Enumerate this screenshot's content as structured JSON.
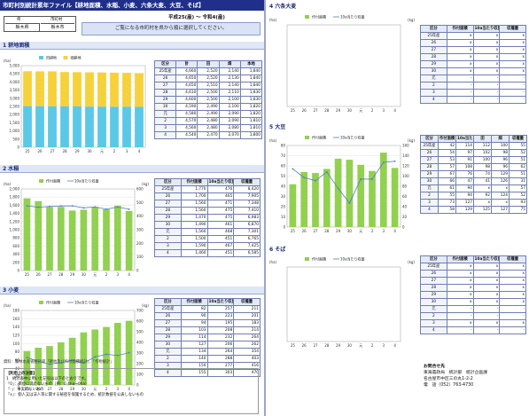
{
  "title": "市町村別統計累年ファイル【耕地面積、水稲、小麦、六条大麦、大豆、そば】",
  "period": "平成25(産) ～ 令和4(産)",
  "area": {
    "pref_head": "県",
    "city_head": "市町村",
    "pref": "栃木県",
    "city": "栃木市"
  },
  "notice": "ご覧になる市町村を県から順に選択してください。",
  "sections": {
    "s1": "1  耕地面積",
    "s2": "2  水稲",
    "s3": "3  小麦",
    "s4": "4  六条大麦",
    "s5": "5  大豆",
    "s6": "6  そば"
  },
  "legend": {
    "rice_field": "田耕地",
    "upland": "畑耕地",
    "planted": "作付面積",
    "yield": "10a当たり収量"
  },
  "units": {
    "ha": "(ha)",
    "kg": "(kg)",
    "unit_head": "(単位:ha)"
  },
  "years_x": [
    "25",
    "26",
    "27",
    "28",
    "29",
    "30",
    "元",
    "2",
    "3",
    "4"
  ],
  "year_rows": [
    "25年産",
    "26",
    "27",
    "28",
    "29",
    "30",
    "元",
    "2",
    "3",
    "4"
  ],
  "table_heads": {
    "year": "区分",
    "total": "計",
    "paddy": "田",
    "upland": "畑",
    "main": "本地",
    "sub": "畦畔",
    "planted": "作付面積",
    "per10a": "10a当たり収量",
    "harvest": "収穫量",
    "paddy2": "田",
    "upland2": "畑"
  },
  "tables": {
    "land": [
      [
        "4,660",
        "2,520",
        "2,140",
        "1,840"
      ],
      [
        "4,650",
        "2,520",
        "2,130",
        "1,840"
      ],
      [
        "4,650",
        "2,510",
        "2,140",
        "1,840"
      ],
      [
        "4,610",
        "2,500",
        "2,110",
        "1,830"
      ],
      [
        "4,600",
        "2,500",
        "2,100",
        "1,830"
      ],
      [
        "4,590",
        "2,490",
        "2,100",
        "1,820"
      ],
      [
        "4,580",
        "2,490",
        "2,090",
        "1,820"
      ],
      [
        "4,570",
        "2,480",
        "2,090",
        "1,810"
      ],
      [
        "4,560",
        "2,480",
        "2,080",
        "1,810"
      ],
      [
        "4,540",
        "2,470",
        "2,070",
        "1,800"
      ]
    ],
    "rice": [
      [
        "1,770",
        "476",
        "8,420"
      ],
      [
        "1,700",
        "465",
        "7,905"
      ],
      [
        "1,560",
        "471",
        "7,348"
      ],
      [
        "1,560",
        "475",
        "7,410"
      ],
      [
        "1,470",
        "475",
        "6,983"
      ],
      [
        "1,490",
        "461",
        "6,870"
      ],
      [
        "1,560",
        "468",
        "7,301"
      ],
      [
        "1,500",
        "451",
        "6,765"
      ],
      [
        "1,590",
        "467",
        "7,425"
      ],
      [
        "1,460",
        "451",
        "6,585"
      ]
    ],
    "wheat": [
      [
        "82",
        "257",
        "211"
      ],
      [
        "90",
        "223",
        "201"
      ],
      [
        "94",
        "195",
        "183"
      ],
      [
        "103",
        "208",
        "214"
      ],
      [
        "114",
        "232",
        "264"
      ],
      [
        "127",
        "206",
        "262"
      ],
      [
        "134",
        "264",
        "354"
      ],
      [
        "140",
        "288",
        "403"
      ],
      [
        "150",
        "277",
        "416"
      ],
      [
        "155",
        "303",
        "470"
      ]
    ],
    "barley": [
      [
        "x",
        "x",
        "x"
      ],
      [
        "x",
        "x",
        "x"
      ],
      [
        "x",
        "x",
        "x"
      ],
      [
        "x",
        "x",
        "x"
      ],
      [
        "x",
        "x",
        "x"
      ],
      [
        "x",
        "x",
        "x"
      ],
      [
        "-",
        "-",
        "-"
      ],
      [
        "-",
        "-",
        "-"
      ],
      [
        "-",
        "-",
        "-"
      ],
      [
        "-",
        "-",
        "-"
      ]
    ],
    "soy": [
      [
        "42",
        "114",
        "112",
        "100",
        "55"
      ],
      [
        "54",
        "97",
        "102",
        "98",
        "52"
      ],
      [
        "53",
        "91",
        "100",
        "96",
        "51"
      ],
      [
        "57",
        "108",
        "98",
        "96",
        "62"
      ],
      [
        "67",
        "76",
        "74",
        "129",
        "51"
      ],
      [
        "66",
        "47",
        "41",
        "126",
        "31"
      ],
      [
        "61",
        "94",
        "x",
        "x",
        "57"
      ],
      [
        "55",
        "94",
        "92",
        "124",
        "52"
      ],
      [
        "73",
        "127",
        "x",
        "x",
        "93"
      ],
      [
        "58",
        "129",
        "125",
        "127",
        "75"
      ]
    ],
    "soba": [
      [
        "x",
        "x",
        "x"
      ],
      [
        "x",
        "x",
        "x"
      ],
      [
        "x",
        "x",
        "x"
      ],
      [
        "x",
        "x",
        "x"
      ],
      [
        "x",
        "x",
        "x"
      ],
      [
        "x",
        "x",
        "x"
      ],
      [
        "-",
        "-",
        "-"
      ],
      [
        "-",
        "-",
        "-"
      ],
      [
        "x",
        "x",
        "x"
      ],
      [
        "-",
        "-",
        "-"
      ]
    ]
  },
  "source": "資料：農林水産省統計部「耕地及び作付面積統計」、「作物統計」",
  "notes": {
    "title": "【利用上の注意】",
    "lines": [
      "1　統計表中に用いた記号は以下のとおりです。",
      "「0」：単位に満たないもの（例：0.4ha→0ha）",
      "「-」：事実のないもの",
      "「x」：個人又は法人等に関する秘密を保護するため、統計数値を公表しないもの"
    ]
  },
  "contact": {
    "title": "お問合せ先",
    "org": "東海農政局　統計部　統計企画課",
    "addr": "名古屋市中区三の丸1-2-2",
    "tel": "電　話（052）763-4730"
  },
  "chart_data": [
    {
      "type": "bar",
      "stacked": true,
      "title": "1 耕地面積",
      "categories": [
        "25",
        "26",
        "27",
        "28",
        "29",
        "30",
        "元",
        "2",
        "3",
        "4"
      ],
      "series": [
        {
          "name": "田耕地",
          "values": [
            2520,
            2520,
            2510,
            2500,
            2500,
            2490,
            2490,
            2480,
            2480,
            2470
          ],
          "color": "#5bc8e8"
        },
        {
          "name": "畑耕地",
          "values": [
            2140,
            2130,
            2140,
            2110,
            2100,
            2100,
            2090,
            2090,
            2080,
            2070
          ],
          "color": "#f5d23c"
        }
      ],
      "ylabel": "(ha)",
      "ylim": [
        0,
        5000
      ],
      "yticks": [
        0,
        500,
        1000,
        1500,
        2000,
        2500,
        3000,
        3500,
        4000,
        4500,
        5000
      ]
    },
    {
      "type": "bar",
      "title": "2 水稲",
      "categories": [
        "25",
        "26",
        "27",
        "28",
        "29",
        "30",
        "元",
        "2",
        "3",
        "4"
      ],
      "series": [
        {
          "name": "作付面積",
          "values": [
            1770,
            1700,
            1560,
            1560,
            1470,
            1490,
            1560,
            1500,
            1590,
            1460
          ],
          "color": "#92d050",
          "axis": "left"
        },
        {
          "name": "10a当たり収量",
          "values": [
            476,
            465,
            471,
            475,
            475,
            461,
            468,
            451,
            467,
            451
          ],
          "color": "#4f7fc0",
          "axis": "right",
          "line": true
        }
      ],
      "ylim": [
        0,
        2000
      ],
      "yticks": [
        0,
        200,
        400,
        600,
        800,
        1000,
        1200,
        1400,
        1600,
        1800,
        2000
      ],
      "y2lim": [
        0,
        600
      ],
      "y2ticks": [
        0,
        100,
        200,
        300,
        400,
        500,
        600
      ]
    },
    {
      "type": "bar",
      "title": "3 小麦",
      "categories": [
        "25",
        "26",
        "27",
        "28",
        "29",
        "30",
        "元",
        "2",
        "3",
        "4"
      ],
      "series": [
        {
          "name": "作付面積",
          "values": [
            82,
            90,
            94,
            103,
            114,
            127,
            134,
            140,
            150,
            155
          ],
          "color": "#92d050",
          "axis": "left"
        },
        {
          "name": "10a当たり収量",
          "values": [
            257,
            223,
            195,
            208,
            232,
            206,
            264,
            288,
            277,
            303
          ],
          "color": "#4f7fc0",
          "axis": "right",
          "line": true
        }
      ],
      "ylim": [
        0,
        180
      ],
      "yticks": [
        0,
        20,
        40,
        60,
        80,
        100,
        120,
        140,
        160,
        180
      ],
      "y2lim": [
        0,
        700
      ],
      "y2ticks": [
        0,
        100,
        200,
        300,
        400,
        500,
        600,
        700
      ]
    },
    {
      "type": "bar",
      "title": "4 六条大麦",
      "categories": [
        "25",
        "26",
        "27",
        "28",
        "29",
        "30",
        "元",
        "2",
        "3",
        "4"
      ],
      "series": [
        {
          "name": "作付面積",
          "values": [
            0,
            0,
            0,
            0,
            0,
            0,
            0,
            0,
            0,
            0
          ],
          "color": "#92d050",
          "axis": "left"
        },
        {
          "name": "10a当たり収量",
          "values": [
            0,
            0,
            0,
            0,
            0,
            0,
            0,
            0,
            0,
            0
          ],
          "color": "#4f7fc0",
          "axis": "right",
          "line": true
        }
      ],
      "ylim": [
        0,
        1
      ],
      "y2lim": [
        0,
        1
      ]
    },
    {
      "type": "bar",
      "title": "5 大豆",
      "categories": [
        "25",
        "26",
        "27",
        "28",
        "29",
        "30",
        "元",
        "2",
        "3",
        "4"
      ],
      "series": [
        {
          "name": "作付面積",
          "values": [
            42,
            54,
            53,
            57,
            67,
            66,
            61,
            55,
            73,
            58
          ],
          "color": "#92d050",
          "axis": "left"
        },
        {
          "name": "10a当たり収量",
          "values": [
            114,
            97,
            91,
            108,
            76,
            47,
            94,
            94,
            127,
            129
          ],
          "color": "#4f7fc0",
          "axis": "right",
          "line": true
        }
      ],
      "ylim": [
        0,
        80
      ],
      "yticks": [
        0,
        10,
        20,
        30,
        40,
        50,
        60,
        70,
        80
      ],
      "y2lim": [
        0,
        160
      ],
      "y2ticks": [
        0,
        20,
        40,
        60,
        80,
        100,
        120,
        140,
        160
      ]
    },
    {
      "type": "bar",
      "title": "6 そば",
      "categories": [
        "25",
        "26",
        "27",
        "28",
        "29",
        "30",
        "元",
        "2",
        "3",
        "4"
      ],
      "series": [
        {
          "name": "作付面積",
          "values": [
            0,
            0,
            0,
            0,
            0,
            0,
            0,
            0,
            0,
            0
          ],
          "color": "#92d050",
          "axis": "left"
        },
        {
          "name": "10a当たり収量",
          "values": [
            0,
            0,
            0,
            0,
            0,
            0,
            0,
            0,
            0,
            0
          ],
          "color": "#4f7fc0",
          "axis": "right",
          "line": true
        }
      ],
      "ylim": [
        0,
        1
      ],
      "y2lim": [
        0,
        1
      ]
    }
  ]
}
